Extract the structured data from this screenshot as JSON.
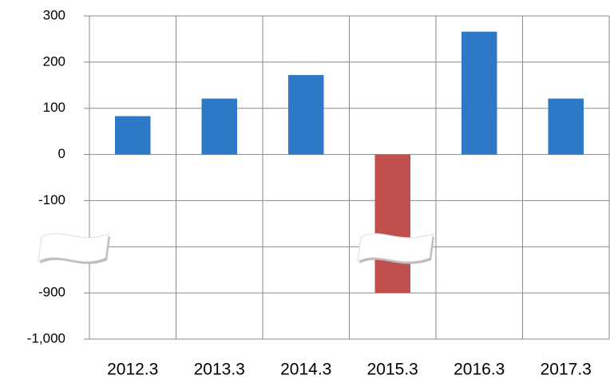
{
  "chart_data": {
    "type": "bar",
    "categories": [
      "2012.3",
      "2013.3",
      "2014.3",
      "2015.3",
      "2016.3",
      "2017.3"
    ],
    "values": [
      83,
      121,
      172,
      -900,
      266,
      121
    ],
    "colors": [
      "#2e78c8",
      "#2e78c8",
      "#2e78c8",
      "#c0504d",
      "#2e78c8",
      "#2e78c8"
    ],
    "ylim": [
      -1000,
      300
    ],
    "ybreak": [
      -200,
      -800
    ],
    "yticks": [
      300,
      200,
      100,
      0,
      -100,
      -900,
      {
        "value": -1000,
        "label": "-1,000"
      }
    ],
    "grid": true
  }
}
